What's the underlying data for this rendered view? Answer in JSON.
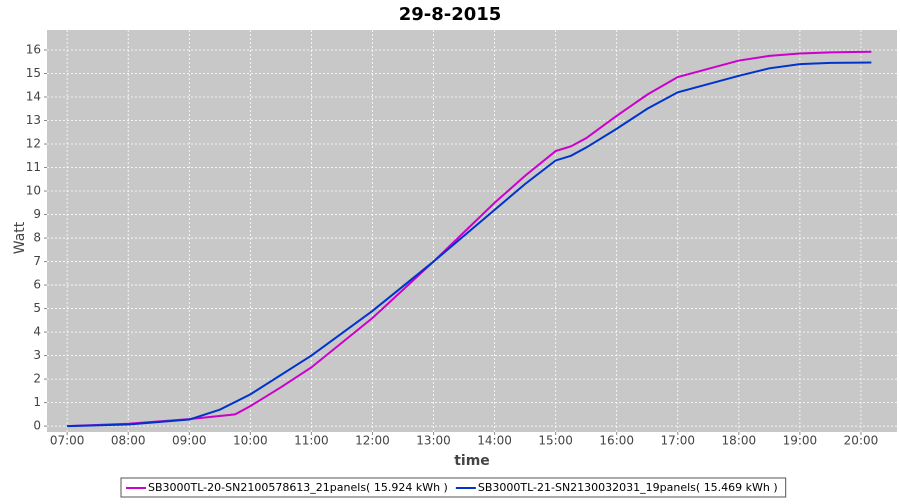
{
  "chart_data": {
    "type": "line",
    "title": "29-8-2015",
    "x_label": "time",
    "y_label": "Watt",
    "xlim": [
      6.67,
      20.59
    ],
    "ylim": [
      -0.25,
      16.85
    ],
    "xticks": [
      {
        "value": 7,
        "label": "07:00"
      },
      {
        "value": 8,
        "label": "08:00"
      },
      {
        "value": 9,
        "label": "09:00"
      },
      {
        "value": 10,
        "label": "10:00"
      },
      {
        "value": 11,
        "label": "11:00"
      },
      {
        "value": 12,
        "label": "12:00"
      },
      {
        "value": 13,
        "label": "13:00"
      },
      {
        "value": 14,
        "label": "14:00"
      },
      {
        "value": 15,
        "label": "15:00"
      },
      {
        "value": 16,
        "label": "16:00"
      },
      {
        "value": 17,
        "label": "17:00"
      },
      {
        "value": 18,
        "label": "18:00"
      },
      {
        "value": 19,
        "label": "19:00"
      },
      {
        "value": 20,
        "label": "20:00"
      }
    ],
    "yticks": [
      0,
      1,
      2,
      3,
      4,
      5,
      6,
      7,
      8,
      9,
      10,
      11,
      12,
      13,
      14,
      15,
      16
    ],
    "grid": true,
    "legend": "bottom",
    "series": [
      {
        "name": "SB3000TL-20-SN2100578613_21panels( 15.924 kWh )",
        "color": "#cc00cc",
        "x": [
          7,
          8,
          9,
          9.75,
          10,
          10.5,
          11,
          12,
          13,
          14,
          14.5,
          15,
          15.25,
          15.5,
          16,
          16.5,
          17,
          17.5,
          18,
          18.5,
          19,
          19.5,
          20,
          20.17
        ],
        "values": [
          0,
          0.1,
          0.3,
          0.5,
          0.85,
          1.65,
          2.5,
          4.6,
          7.0,
          9.5,
          10.65,
          11.7,
          11.9,
          12.25,
          13.2,
          14.1,
          14.85,
          15.2,
          15.55,
          15.75,
          15.85,
          15.9,
          15.92,
          15.924
        ]
      },
      {
        "name": "SB3000TL-21-SN2130032031_19panels( 15.469 kWh )",
        "color": "#0033cc",
        "x": [
          7,
          8,
          9,
          9.5,
          10,
          11,
          12,
          13,
          14,
          14.5,
          15,
          15.25,
          15.5,
          16,
          16.5,
          17,
          17.5,
          18,
          18.5,
          19,
          19.5,
          20,
          20.17
        ],
        "values": [
          0,
          0.07,
          0.28,
          0.7,
          1.35,
          3.0,
          4.9,
          7.0,
          9.2,
          10.3,
          11.3,
          11.5,
          11.85,
          12.65,
          13.5,
          14.2,
          14.55,
          14.9,
          15.22,
          15.4,
          15.45,
          15.46,
          15.469
        ]
      }
    ]
  }
}
